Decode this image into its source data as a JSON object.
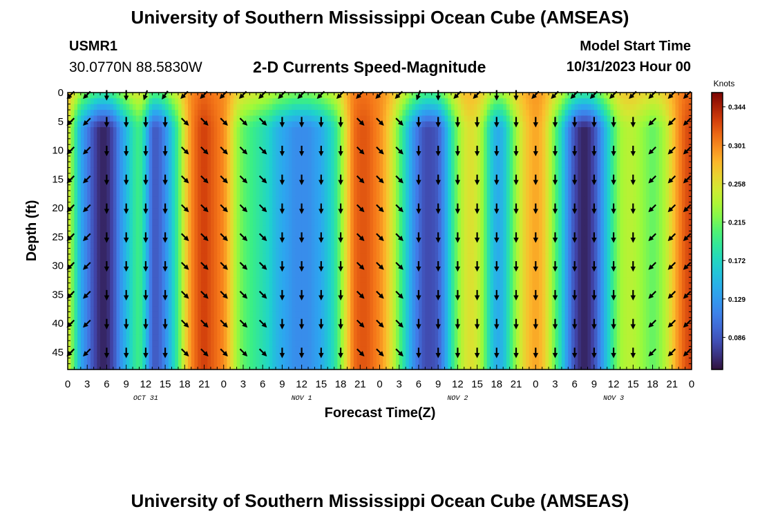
{
  "header": {
    "title": "University of Southern Mississippi Ocean Cube (AMSEAS)",
    "station": "USMR1",
    "coords": "30.0770N  88.5830W",
    "plot_title": "2-D Currents Speed-Magnitude",
    "start_label": "Model Start Time",
    "start_value": "10/31/2023 Hour 00"
  },
  "footer": {
    "title": "University of Southern Mississippi Ocean Cube (AMSEAS)"
  },
  "chart_data": {
    "type": "heatmap",
    "title": "2-D Currents Speed-Magnitude",
    "xlabel": "Forecast Time(Z)",
    "ylabel": "Depth (ft)",
    "x_tick_labels": [
      "0",
      "3",
      "6",
      "9",
      "12",
      "15",
      "18",
      "21",
      "0",
      "3",
      "6",
      "9",
      "12",
      "15",
      "18",
      "21",
      "0",
      "3",
      "6",
      "9",
      "12",
      "15",
      "18",
      "21",
      "0",
      "3",
      "6",
      "9",
      "12",
      "15",
      "18",
      "21",
      "0"
    ],
    "x_hours": [
      0,
      3,
      6,
      9,
      12,
      15,
      18,
      21,
      24,
      27,
      30,
      33,
      36,
      39,
      42,
      45,
      48,
      51,
      54,
      57,
      60,
      63,
      66,
      69,
      72,
      75,
      78,
      81,
      84,
      87,
      90,
      93,
      96
    ],
    "xlim_hours": [
      0,
      96
    ],
    "date_labels": [
      {
        "label": "OCT 31",
        "hour": 12
      },
      {
        "label": "NOV 1",
        "hour": 36
      },
      {
        "label": "NOV 2",
        "hour": 60
      },
      {
        "label": "NOV 3",
        "hour": 84
      }
    ],
    "y_tick_labels": [
      "0",
      "5",
      "10",
      "15",
      "20",
      "25",
      "30",
      "35",
      "40",
      "45"
    ],
    "y_ticks": [
      0,
      5,
      10,
      15,
      20,
      25,
      30,
      35,
      40,
      45
    ],
    "ylim": [
      0,
      48
    ],
    "colorbar": {
      "unit": "Knots",
      "tick_labels": [
        "0.344",
        "0.301",
        "0.258",
        "0.215",
        "0.172",
        "0.129",
        "0.086"
      ],
      "ticks": [
        0.344,
        0.301,
        0.258,
        0.215,
        0.172,
        0.129,
        0.086
      ],
      "range": [
        0.05,
        0.36
      ]
    },
    "speed_profile": {
      "hours": [
        0,
        1,
        2,
        3,
        4,
        5,
        6,
        7,
        8,
        9,
        10,
        11,
        12,
        13,
        14,
        15,
        16,
        17,
        18,
        19,
        20,
        21,
        22,
        23,
        24,
        25,
        26,
        27,
        28,
        29,
        30,
        31,
        32,
        33,
        34,
        35,
        36,
        37,
        38,
        39,
        40,
        41,
        42,
        43,
        44,
        45,
        46,
        47,
        48,
        49,
        50,
        51,
        52,
        53,
        54,
        55,
        56,
        57,
        58,
        59,
        60,
        61,
        62,
        63,
        64,
        65,
        66,
        67,
        68,
        69,
        70,
        71,
        72,
        73,
        74,
        75,
        76,
        77,
        78,
        79,
        80,
        81,
        82,
        83,
        84,
        85,
        86,
        87,
        88,
        89,
        90,
        91,
        92,
        93,
        94,
        95,
        96
      ],
      "knots": [
        0.26,
        0.2,
        0.14,
        0.11,
        0.08,
        0.06,
        0.06,
        0.08,
        0.12,
        0.15,
        0.18,
        0.2,
        0.16,
        0.09,
        0.09,
        0.12,
        0.16,
        0.2,
        0.26,
        0.3,
        0.32,
        0.33,
        0.32,
        0.31,
        0.3,
        0.27,
        0.23,
        0.21,
        0.2,
        0.19,
        0.18,
        0.17,
        0.15,
        0.14,
        0.13,
        0.12,
        0.12,
        0.12,
        0.13,
        0.14,
        0.16,
        0.18,
        0.22,
        0.27,
        0.31,
        0.32,
        0.32,
        0.31,
        0.3,
        0.28,
        0.25,
        0.21,
        0.17,
        0.13,
        0.1,
        0.08,
        0.08,
        0.09,
        0.13,
        0.18,
        0.22,
        0.25,
        0.26,
        0.25,
        0.22,
        0.17,
        0.14,
        0.15,
        0.19,
        0.23,
        0.26,
        0.28,
        0.29,
        0.28,
        0.25,
        0.21,
        0.17,
        0.12,
        0.08,
        0.06,
        0.06,
        0.08,
        0.12,
        0.16,
        0.2,
        0.23,
        0.24,
        0.24,
        0.23,
        0.22,
        0.21,
        0.22,
        0.24,
        0.27,
        0.3,
        0.32,
        0.33
      ]
    },
    "arrow_hours": [
      0.5,
      3,
      6,
      9,
      12,
      15,
      18,
      21,
      24,
      27,
      30,
      33,
      36,
      39,
      42,
      45,
      48,
      51,
      54,
      57,
      60,
      63,
      66,
      69,
      72,
      75,
      78,
      81,
      84,
      87,
      90,
      93,
      96
    ],
    "arrow_depths": [
      0,
      5,
      10,
      15,
      20,
      25,
      30,
      35,
      40,
      45
    ],
    "arrow_direction_deg": [
      225,
      225,
      180,
      180,
      180,
      180,
      135,
      135,
      135,
      135,
      135,
      180,
      180,
      180,
      180,
      135,
      135,
      135,
      180,
      180,
      180,
      180,
      180,
      180,
      180,
      180,
      180,
      180,
      180,
      180,
      225,
      225,
      225
    ],
    "surface_direction_deg": [
      225,
      225,
      180,
      180,
      200,
      215,
      225,
      225,
      225,
      225,
      225,
      225,
      225,
      225,
      225,
      225,
      225,
      225,
      200,
      180,
      225,
      225,
      180,
      180,
      225,
      225,
      225,
      225,
      225,
      225,
      225,
      225,
      225
    ]
  }
}
